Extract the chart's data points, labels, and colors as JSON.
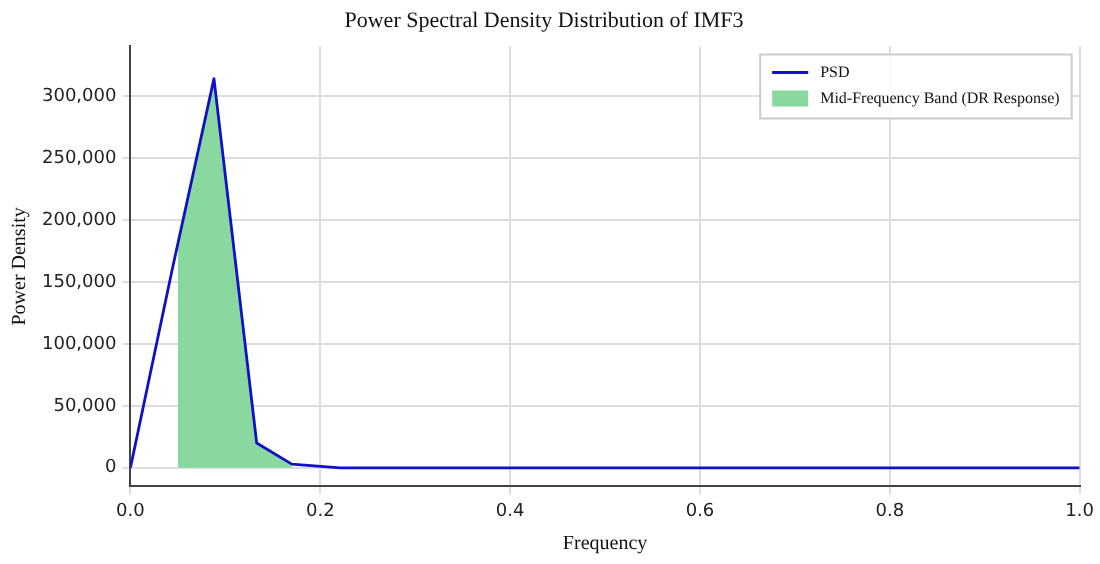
{
  "chart_data": {
    "type": "line",
    "title": "Power Spectral Density Distribution of IMF3",
    "xlabel": "Frequency",
    "ylabel": "Power Density",
    "series": [
      {
        "name": "PSD",
        "color": "#1010c8",
        "x": [
          0,
          0.044,
          0.088,
          0.133,
          0.17,
          0.221,
          0.3,
          0.4,
          0.5,
          0.6,
          0.7,
          0.8,
          0.9,
          1.0
        ],
        "values": [
          0,
          160000,
          314000,
          20000,
          3000,
          0,
          0,
          0,
          0,
          0,
          0,
          0,
          0,
          0
        ]
      },
      {
        "name": "Mid-Frequency Band (DR Response)",
        "type": "area",
        "color": "#88d8a0",
        "x": [
          0.05,
          0.088,
          0.133,
          0.17
        ],
        "values": [
          183000,
          314000,
          20000,
          3000
        ]
      }
    ],
    "xlim": [
      0,
      1
    ],
    "xticks": [
      {
        "value": 0,
        "label": "0.0"
      },
      0.2,
      0.4,
      0.6,
      0.8,
      {
        "value": 1,
        "label": "1.0"
      }
    ],
    "ylim": [
      -15000,
      340000
    ],
    "yticks": [
      {
        "value": 0,
        "label": "0"
      },
      {
        "value": 50000,
        "label": "50,000"
      },
      {
        "value": 100000,
        "label": "100,000"
      },
      {
        "value": 150000,
        "label": "150,000"
      },
      {
        "value": 200000,
        "label": "200,000"
      },
      {
        "value": 250000,
        "label": "250,000"
      },
      {
        "value": 300000,
        "label": "300,000"
      }
    ],
    "grid": true,
    "legend": "top right",
    "marker": "none",
    "line_style": "solid"
  }
}
